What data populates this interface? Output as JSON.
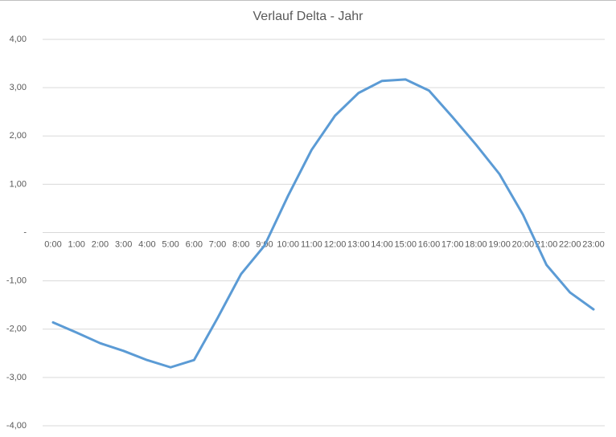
{
  "chart_data": {
    "type": "line",
    "title": "Verlauf Delta - Jahr",
    "categories": [
      "0:00",
      "1:00",
      "2:00",
      "3:00",
      "4:00",
      "5:00",
      "6:00",
      "7:00",
      "8:00",
      "9:00",
      "10:00",
      "11:00",
      "12:00",
      "13:00",
      "14:00",
      "15:00",
      "16:00",
      "17:00",
      "18:00",
      "19:00",
      "20:00",
      "21:00",
      "22:00",
      "23:00"
    ],
    "values": [
      -1.86,
      -2.07,
      -2.29,
      -2.45,
      -2.64,
      -2.79,
      -2.64,
      -1.77,
      -0.86,
      -0.27,
      0.76,
      1.71,
      2.42,
      2.89,
      3.14,
      3.17,
      2.94,
      2.39,
      1.82,
      1.21,
      0.37,
      -0.67,
      -1.24,
      -1.59
    ],
    "color": "#5b9bd5",
    "ylim": [
      -4,
      4
    ],
    "yticks": [
      {
        "value": -4,
        "label": "-4,00"
      },
      {
        "value": -3,
        "label": "-3,00"
      },
      {
        "value": -2,
        "label": "-2,00"
      },
      {
        "value": -1,
        "label": "-1,00"
      },
      {
        "value": 0,
        "label": "-"
      },
      {
        "value": 1,
        "label": "1,00"
      },
      {
        "value": 2,
        "label": "2,00"
      },
      {
        "value": 3,
        "label": "3,00"
      },
      {
        "value": 4,
        "label": "4,00"
      }
    ],
    "grid": true
  }
}
